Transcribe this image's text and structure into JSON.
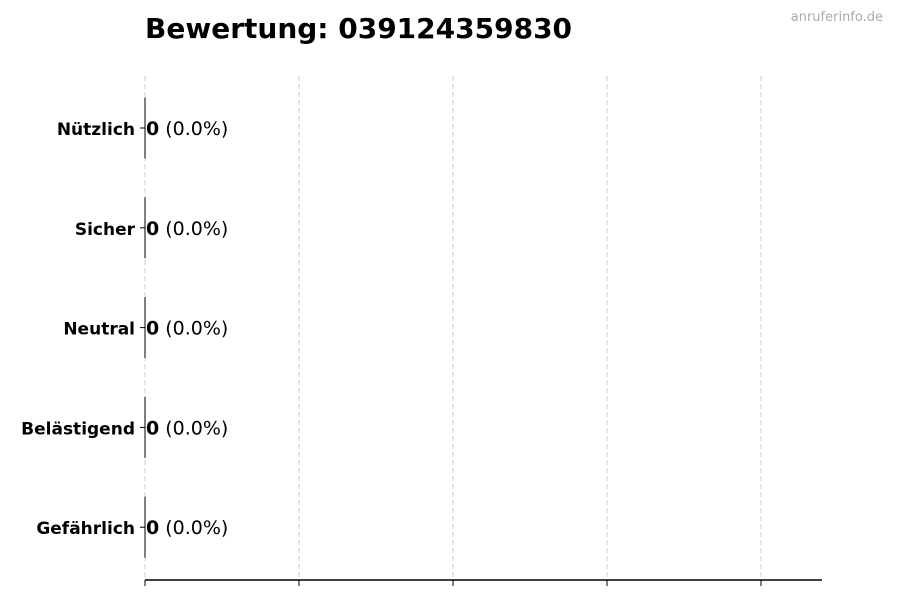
{
  "chart_data": {
    "type": "bar",
    "orientation": "horizontal",
    "title": "Bewertung: 039124359830",
    "watermark": "anruferinfo.de",
    "categories": [
      "Nützlich",
      "Sicher",
      "Neutral",
      "Belästigend",
      "Gefährlich"
    ],
    "values": [
      0,
      0,
      0,
      0,
      0
    ],
    "labels": [
      {
        "count": "0",
        "percent": "(0.0%)"
      },
      {
        "count": "0",
        "percent": "(0.0%)"
      },
      {
        "count": "0",
        "percent": "(0.0%)"
      },
      {
        "count": "0",
        "percent": "(0.0%)"
      },
      {
        "count": "0",
        "percent": "(0.0%)"
      }
    ],
    "xlabel": "",
    "ylabel": "",
    "x_tick_labels": "none",
    "grid": "vertical dashed",
    "colors": {
      "bar_edge": "#000000",
      "grid": "#cccccc",
      "watermark": "#aaaaaa"
    }
  }
}
